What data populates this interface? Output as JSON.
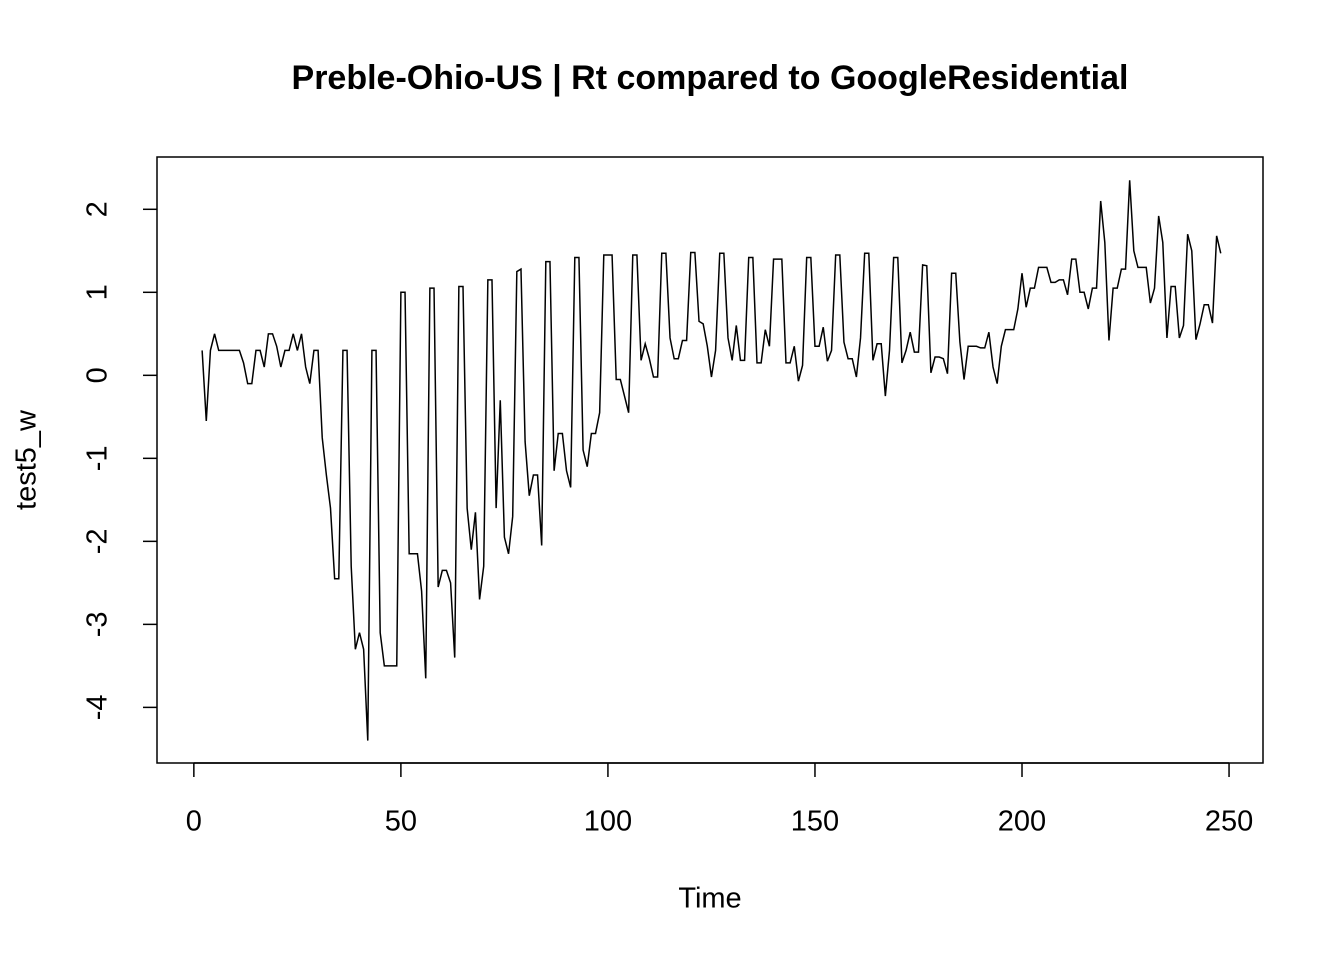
{
  "chart_data": {
    "type": "line",
    "title": "Preble-Ohio-US | Rt compared to GoogleResidential",
    "x_label": "Time",
    "y_label": "test5_w",
    "color": "#000000",
    "xlim": [
      -8.9,
      258.2
    ],
    "ylim": [
      -4.67,
      2.63
    ],
    "xticks": [
      0,
      50,
      100,
      150,
      200,
      250
    ],
    "yticks": [
      -4,
      -3,
      -2,
      -1,
      0,
      1,
      2
    ],
    "x": [
      2,
      3,
      4,
      5,
      6,
      7,
      8,
      9,
      10,
      11,
      12,
      13,
      14,
      15,
      16,
      17,
      18,
      19,
      20,
      21,
      22,
      23,
      24,
      25,
      26,
      27,
      28,
      29,
      30,
      31,
      32,
      33,
      34,
      35,
      36,
      37,
      38,
      39,
      40,
      41,
      42,
      43,
      44,
      45,
      46,
      47,
      48,
      49,
      50,
      51,
      52,
      53,
      54,
      55,
      56,
      57,
      58,
      59,
      60,
      61,
      62,
      63,
      64,
      65,
      66,
      67,
      68,
      69,
      70,
      71,
      72,
      73,
      74,
      75,
      76,
      77,
      78,
      79,
      80,
      81,
      82,
      83,
      84,
      85,
      86,
      87,
      88,
      89,
      90,
      91,
      92,
      93,
      94,
      95,
      96,
      97,
      98,
      99,
      100,
      101,
      102,
      103,
      104,
      105,
      106,
      107,
      108,
      109,
      110,
      111,
      112,
      113,
      114,
      115,
      116,
      117,
      118,
      119,
      120,
      121,
      122,
      123,
      124,
      125,
      126,
      127,
      128,
      129,
      130,
      131,
      132,
      133,
      134,
      135,
      136,
      137,
      138,
      139,
      140,
      141,
      142,
      143,
      144,
      145,
      146,
      147,
      148,
      149,
      150,
      151,
      152,
      153,
      154,
      155,
      156,
      157,
      158,
      159,
      160,
      161,
      162,
      163,
      164,
      165,
      166,
      167,
      168,
      169,
      170,
      171,
      172,
      173,
      174,
      175,
      176,
      177,
      178,
      179,
      180,
      181,
      182,
      183,
      184,
      185,
      186,
      187,
      188,
      189,
      190,
      191,
      192,
      193,
      194,
      195,
      196,
      197,
      198,
      199,
      200,
      201,
      202,
      203,
      204,
      205,
      206,
      207,
      208,
      209,
      210,
      211,
      212,
      213,
      214,
      215,
      216,
      217,
      218,
      219,
      220,
      221,
      222,
      223,
      224,
      225,
      226,
      227,
      228,
      229,
      230,
      231,
      232,
      233,
      234,
      235,
      236,
      237,
      238,
      239,
      240,
      241,
      242,
      243,
      244,
      245,
      246,
      247,
      248
    ],
    "values": [
      0.3,
      -0.55,
      0.3,
      0.5,
      0.3,
      0.3,
      0.3,
      0.3,
      0.3,
      0.3,
      0.15,
      -0.1,
      -0.1,
      0.3,
      0.3,
      0.1,
      0.5,
      0.5,
      0.35,
      0.1,
      0.3,
      0.3,
      0.5,
      0.3,
      0.5,
      0.1,
      -0.1,
      0.3,
      0.3,
      -0.75,
      -1.2,
      -1.6,
      -2.45,
      -2.45,
      0.3,
      0.3,
      -2.3,
      -3.3,
      -3.1,
      -3.3,
      -4.4,
      0.3,
      0.3,
      -3.1,
      -3.5,
      -3.5,
      -3.5,
      -3.5,
      1.0,
      1.0,
      -2.15,
      -2.15,
      -2.15,
      -2.6,
      -3.65,
      1.05,
      1.05,
      -2.55,
      -2.35,
      -2.35,
      -2.5,
      -3.4,
      1.07,
      1.07,
      -1.6,
      -2.1,
      -1.65,
      -2.7,
      -2.3,
      1.15,
      1.15,
      -1.6,
      -0.3,
      -1.95,
      -2.15,
      -1.7,
      1.25,
      1.28,
      -0.8,
      -1.45,
      -1.2,
      -1.2,
      -2.05,
      1.37,
      1.37,
      -1.15,
      -0.7,
      -0.7,
      -1.15,
      -1.35,
      1.42,
      1.42,
      -0.9,
      -1.1,
      -0.7,
      -0.7,
      -0.45,
      1.45,
      1.45,
      1.45,
      -0.05,
      -0.05,
      -0.25,
      -0.45,
      1.45,
      1.45,
      0.18,
      0.38,
      0.2,
      -0.02,
      -0.02,
      1.47,
      1.47,
      0.45,
      0.2,
      0.2,
      0.42,
      0.42,
      1.48,
      1.48,
      0.65,
      0.62,
      0.35,
      -0.02,
      0.3,
      1.47,
      1.47,
      0.45,
      0.18,
      0.6,
      0.18,
      0.18,
      1.42,
      1.42,
      0.15,
      0.15,
      0.55,
      0.35,
      1.4,
      1.4,
      1.4,
      0.15,
      0.15,
      0.35,
      -0.07,
      0.12,
      1.42,
      1.42,
      0.35,
      0.35,
      0.58,
      0.17,
      0.3,
      1.45,
      1.45,
      0.4,
      0.2,
      0.2,
      -0.02,
      0.45,
      1.47,
      1.47,
      0.18,
      0.38,
      0.38,
      -0.25,
      0.3,
      1.42,
      1.42,
      0.15,
      0.3,
      0.52,
      0.28,
      0.28,
      1.33,
      1.32,
      0.03,
      0.22,
      0.22,
      0.2,
      0.02,
      1.23,
      1.23,
      0.4,
      -0.05,
      0.35,
      0.35,
      0.35,
      0.33,
      0.33,
      0.52,
      0.1,
      -0.1,
      0.35,
      0.55,
      0.55,
      0.55,
      0.8,
      1.23,
      0.82,
      1.05,
      1.05,
      1.3,
      1.3,
      1.3,
      1.12,
      1.12,
      1.15,
      1.15,
      0.97,
      1.4,
      1.4,
      1.0,
      1.0,
      0.8,
      1.05,
      1.05,
      2.1,
      1.6,
      0.42,
      1.05,
      1.05,
      1.28,
      1.28,
      2.35,
      1.5,
      1.3,
      1.3,
      1.3,
      0.87,
      1.05,
      1.92,
      1.6,
      0.45,
      1.07,
      1.07,
      0.45,
      0.6,
      1.7,
      1.5,
      0.43,
      0.62,
      0.85,
      0.85,
      0.63,
      1.68,
      1.47
    ]
  }
}
